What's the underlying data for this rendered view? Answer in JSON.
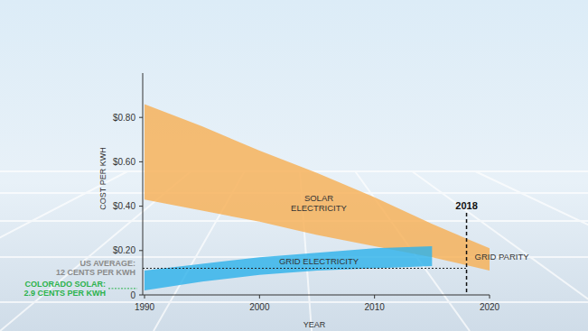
{
  "chart_data": {
    "type": "area_range",
    "x_label": "YEAR",
    "y_label": "COST PER KWH",
    "x": [
      1990,
      1995,
      2000,
      2005,
      2010,
      2015,
      2020
    ],
    "series": [
      {
        "name": "SOLAR ELECTRICITY",
        "color": "#f6b056",
        "values": [
          0.86,
          0.76,
          0.65,
          0.55,
          0.44,
          0.32,
          0.21
        ],
        "low": [
          0.43,
          0.38,
          0.33,
          0.27,
          0.22,
          0.17,
          0.11
        ]
      },
      {
        "name": "GRID ELECTRICITY",
        "color": "#2fb2ea",
        "values": [
          0.11,
          0.14,
          0.17,
          0.19,
          0.21,
          0.22,
          null
        ],
        "low": [
          0.02,
          0.06,
          0.09,
          0.11,
          0.12,
          0.13,
          null
        ]
      }
    ],
    "xlim": [
      1990,
      2020
    ],
    "ylim": [
      0,
      1.0
    ],
    "xticks": [
      1990,
      2000,
      2010,
      2020
    ],
    "yticks": [
      0,
      {
        "value": 0.2,
        "label": "$0.20"
      },
      {
        "value": 0.4,
        "label": "$0.40"
      },
      {
        "value": 0.6,
        "label": "$0.60"
      },
      {
        "value": 0.8,
        "label": "$0.80"
      }
    ],
    "grid": false,
    "annotations": [
      {
        "lines": [
          "US AVERAGE:",
          "12 CENTS PER KWH"
        ],
        "y": 0.12,
        "x_end": 2018,
        "color": "#8a8a8a"
      },
      {
        "lines": [
          "COLORADO SOLAR:",
          "2.9 CENTS PER KWH"
        ],
        "y": 0.029,
        "color": "#2bb24c"
      },
      {
        "label": "2018",
        "x": 2018,
        "y_top": 0.37
      },
      {
        "text": "GRID PARITY",
        "x": 2018,
        "y": 0.17
      }
    ]
  }
}
